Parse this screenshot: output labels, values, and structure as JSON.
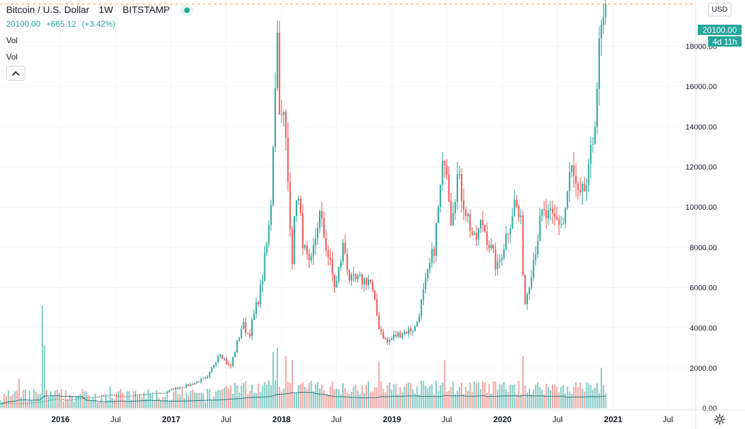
{
  "header": {
    "symbol": "Bitcoin / U.S. Dollar",
    "interval": "1W",
    "exchange": "BITSTAMP",
    "last": "20100.00",
    "change": "+665.12",
    "change_pct": "(+3.42%)",
    "vol_label_1": "Vol",
    "vol_label_2": "Vol",
    "live_icon": "live-status-icon",
    "collapse_icon": "chevron-up-icon"
  },
  "scale": {
    "currency": "USD",
    "last_price_tag": "20100.00",
    "countdown_tag": "4d 11h",
    "settings_icon": "gear-icon"
  },
  "colors": {
    "up": "#26a69a",
    "down": "#ef5350",
    "up_volume": "#80cbc4",
    "down_volume": "#f0a5a2",
    "grid": "#f0f3fa",
    "last_price_line": "#f5a623",
    "volume_ma": "#2b7a78"
  },
  "chart_data": {
    "type": "candlestick",
    "interval": "1W",
    "x_range": [
      "2015-06-15",
      "2021-10-01"
    ],
    "y_range": [
      -80,
      20300
    ],
    "y_ticks": [
      {
        "value": 0,
        "label": "0.00"
      },
      {
        "value": 2000,
        "label": "2000.00"
      },
      {
        "value": 4000,
        "label": "4000.00"
      },
      {
        "value": 6000,
        "label": "6000.00"
      },
      {
        "value": 8000,
        "label": "8000.00"
      },
      {
        "value": 10000,
        "label": "10000.00"
      },
      {
        "value": 12000,
        "label": "12000.00"
      },
      {
        "value": 14000,
        "label": "14000.00"
      },
      {
        "value": 16000,
        "label": "16000.00"
      },
      {
        "value": 18000,
        "label": "18000.00"
      }
    ],
    "x_ticks": [
      {
        "date": "2016-01-01",
        "label": "2016",
        "bold": true
      },
      {
        "date": "2016-07-01",
        "label": "Jul",
        "bold": false
      },
      {
        "date": "2017-01-01",
        "label": "2017",
        "bold": true
      },
      {
        "date": "2017-07-01",
        "label": "Jul",
        "bold": false
      },
      {
        "date": "2018-01-01",
        "label": "2018",
        "bold": true
      },
      {
        "date": "2018-07-01",
        "label": "Jul",
        "bold": false
      },
      {
        "date": "2019-01-01",
        "label": "2019",
        "bold": true
      },
      {
        "date": "2019-07-01",
        "label": "Jul",
        "bold": false
      },
      {
        "date": "2020-01-01",
        "label": "2020",
        "bold": true
      },
      {
        "date": "2020-07-01",
        "label": "Jul",
        "bold": false
      },
      {
        "date": "2021-01-01",
        "label": "2021",
        "bold": true
      },
      {
        "date": "2021-07-01",
        "label": "Jul",
        "bold": false
      }
    ],
    "last_price": 20100,
    "price_anchors": [
      [
        "2015-06-15",
        250
      ],
      [
        "2015-09-01",
        235
      ],
      [
        "2015-11-01",
        330
      ],
      [
        "2015-12-15",
        450
      ],
      [
        "2016-01-20",
        400
      ],
      [
        "2016-06-10",
        650
      ],
      [
        "2016-08-01",
        580
      ],
      [
        "2016-12-15",
        780
      ],
      [
        "2017-01-05",
        950
      ],
      [
        "2017-03-01",
        1150
      ],
      [
        "2017-05-01",
        1500
      ],
      [
        "2017-06-10",
        2800
      ],
      [
        "2017-07-15",
        2000
      ],
      [
        "2017-08-25",
        4200
      ],
      [
        "2017-09-15",
        3600
      ],
      [
        "2017-10-25",
        6000
      ],
      [
        "2017-11-25",
        9500
      ],
      [
        "2017-12-10",
        16000
      ],
      [
        "2017-12-17",
        19000
      ],
      [
        "2017-12-28",
        14000
      ],
      [
        "2018-01-10",
        14500
      ],
      [
        "2018-02-05",
        7500
      ],
      [
        "2018-02-20",
        11000
      ],
      [
        "2018-03-15",
        8000
      ],
      [
        "2018-04-05",
        6800
      ],
      [
        "2018-05-05",
        9700
      ],
      [
        "2018-06-28",
        5900
      ],
      [
        "2018-07-25",
        8200
      ],
      [
        "2018-08-15",
        6300
      ],
      [
        "2018-10-20",
        6400
      ],
      [
        "2018-11-20",
        4000
      ],
      [
        "2018-12-15",
        3250
      ],
      [
        "2019-01-10",
        3600
      ],
      [
        "2019-03-20",
        4000
      ],
      [
        "2019-05-20",
        8000
      ],
      [
        "2019-06-26",
        13000
      ],
      [
        "2019-07-15",
        9500
      ],
      [
        "2019-08-05",
        11500
      ],
      [
        "2019-10-01",
        8200
      ],
      [
        "2019-10-26",
        9300
      ],
      [
        "2019-12-15",
        6900
      ],
      [
        "2020-02-12",
        10300
      ],
      [
        "2020-03-05",
        8900
      ],
      [
        "2020-03-13",
        5000
      ],
      [
        "2020-04-05",
        6800
      ],
      [
        "2020-05-10",
        9600
      ],
      [
        "2020-07-20",
        9200
      ],
      [
        "2020-08-15",
        12000
      ],
      [
        "2020-09-10",
        10200
      ],
      [
        "2020-10-10",
        11300
      ],
      [
        "2020-10-28",
        13600
      ],
      [
        "2020-11-20",
        18500
      ],
      [
        "2020-12-01",
        19000
      ],
      [
        "2020-12-07",
        20100
      ]
    ],
    "volume_spikes": [
      [
        "2015-11-02",
        5100
      ],
      [
        "2015-11-09",
        3100
      ],
      [
        "2015-08-17",
        1500
      ],
      [
        "2016-06-13",
        1100
      ],
      [
        "2017-12-04",
        2400
      ],
      [
        "2017-12-18",
        2600
      ],
      [
        "2018-01-15",
        2200
      ],
      [
        "2018-02-05",
        2000
      ],
      [
        "2018-11-19",
        1900
      ],
      [
        "2019-06-24",
        2000
      ],
      [
        "2020-03-09",
        2200
      ],
      [
        "2020-11-23",
        1600
      ]
    ]
  }
}
